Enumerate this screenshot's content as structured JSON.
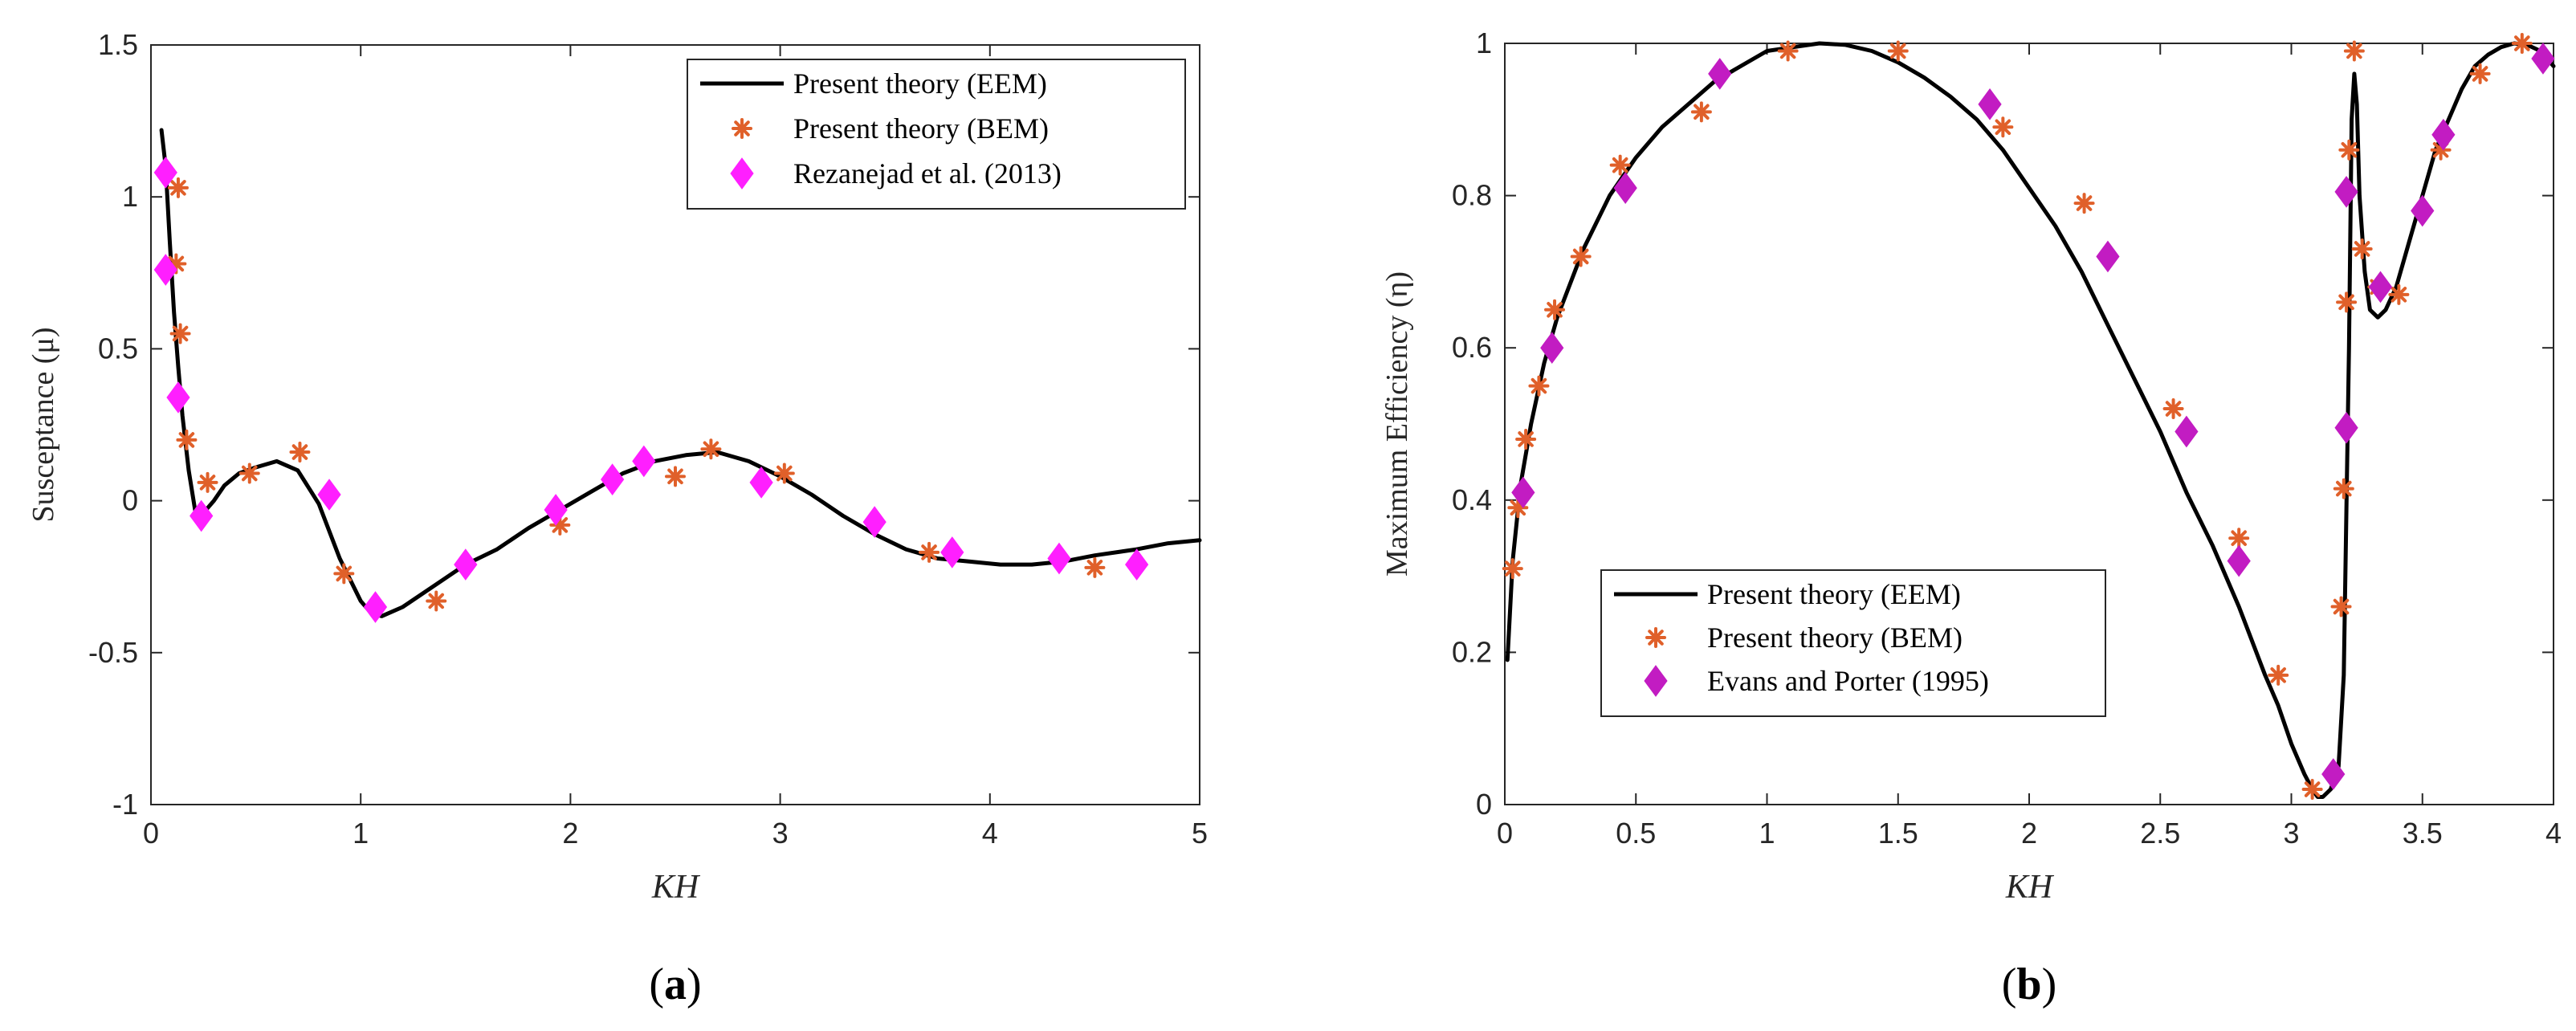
{
  "colors": {
    "line": "#000000",
    "bem_star": "#E0602A",
    "diamond_a": "#FF1FFF",
    "diamond_b": "#C21CC2",
    "axis": "#262626"
  },
  "chart_data": [
    {
      "type": "line",
      "panel": "a",
      "panel_label": "a",
      "xlabel": "KH",
      "ylabel": "Susceptance (μ)",
      "xlim": [
        0,
        5
      ],
      "ylim": [
        -1,
        1.5
      ],
      "xticks": [
        0,
        1,
        2,
        3,
        4,
        5
      ],
      "xtick_labels": [
        "0",
        "1",
        "2",
        "3",
        "4",
        "5"
      ],
      "yticks": [
        -1,
        -0.5,
        0,
        0.5,
        1,
        1.5
      ],
      "ytick_labels": [
        "-1",
        "-0.5",
        "0",
        "0.5",
        "1",
        "1.5"
      ],
      "legend": [
        "Present theory (EEM)",
        "Present theory (BEM)",
        "Rezanejad et al. (2013)"
      ],
      "legend_position": "top-right",
      "series": [
        {
          "name": "Present theory (EEM)",
          "style": "line",
          "x": [
            0.05,
            0.07,
            0.09,
            0.11,
            0.13,
            0.15,
            0.18,
            0.21,
            0.25,
            0.3,
            0.35,
            0.42,
            0.5,
            0.6,
            0.7,
            0.8,
            0.9,
            1.0,
            1.05,
            1.1,
            1.2,
            1.35,
            1.5,
            1.65,
            1.8,
            1.95,
            2.1,
            2.25,
            2.4,
            2.55,
            2.7,
            2.85,
            3.0,
            3.15,
            3.3,
            3.45,
            3.6,
            3.75,
            3.9,
            4.05,
            4.2,
            4.35,
            4.5,
            4.7,
            4.85,
            5.0
          ],
          "y": [
            1.22,
            1.1,
            0.85,
            0.62,
            0.44,
            0.28,
            0.1,
            -0.03,
            -0.04,
            0.0,
            0.05,
            0.09,
            0.11,
            0.13,
            0.1,
            -0.01,
            -0.19,
            -0.33,
            -0.37,
            -0.38,
            -0.35,
            -0.28,
            -0.21,
            -0.16,
            -0.09,
            -0.03,
            0.03,
            0.09,
            0.13,
            0.15,
            0.16,
            0.13,
            0.08,
            0.02,
            -0.05,
            -0.11,
            -0.16,
            -0.19,
            -0.2,
            -0.21,
            -0.21,
            -0.2,
            -0.18,
            -0.16,
            -0.14,
            -0.13
          ]
        },
        {
          "name": "Present theory (BEM)",
          "style": "star",
          "x": [
            0.13,
            0.12,
            0.14,
            0.17,
            0.27,
            0.47,
            0.71,
            0.92,
            1.36,
            1.95,
            2.5,
            2.67,
            3.02,
            3.71,
            4.5
          ],
          "y": [
            1.03,
            0.78,
            0.55,
            0.2,
            0.06,
            0.09,
            0.16,
            -0.24,
            -0.33,
            -0.08,
            0.08,
            0.17,
            0.09,
            -0.17,
            -0.22
          ]
        },
        {
          "name": "Rezanejad et al. (2013)",
          "style": "diamond",
          "x": [
            0.07,
            0.07,
            0.13,
            0.24,
            0.85,
            1.07,
            1.5,
            1.93,
            2.2,
            2.35,
            2.91,
            3.45,
            3.82,
            4.33,
            4.7
          ],
          "y": [
            1.08,
            0.76,
            0.34,
            -0.05,
            0.02,
            -0.35,
            -0.21,
            -0.03,
            0.07,
            0.13,
            0.06,
            -0.07,
            -0.17,
            -0.19,
            -0.21
          ]
        }
      ]
    },
    {
      "type": "line",
      "panel": "b",
      "panel_label": "b",
      "xlabel": "KH",
      "ylabel": "Maximum Efficiency (η)",
      "xlim": [
        0,
        4
      ],
      "ylim": [
        0,
        1
      ],
      "xticks": [
        0,
        0.5,
        1,
        1.5,
        2,
        2.5,
        3,
        3.5,
        4
      ],
      "xtick_labels": [
        "0",
        "0.5",
        "1",
        "1.5",
        "2",
        "2.5",
        "3",
        "3.5",
        "4"
      ],
      "yticks": [
        0,
        0.2,
        0.4,
        0.6,
        0.8,
        1
      ],
      "ytick_labels": [
        "0",
        "0.2",
        "0.4",
        "0.6",
        "0.8",
        "1"
      ],
      "legend": [
        "Present theory (EEM)",
        "Present theory (BEM)",
        "Evans and Porter (1995)"
      ],
      "legend_position": "center-left",
      "series": [
        {
          "name": "Present theory (EEM)",
          "style": "line",
          "x": [
            0.01,
            0.03,
            0.06,
            0.1,
            0.15,
            0.2,
            0.3,
            0.4,
            0.5,
            0.6,
            0.7,
            0.8,
            0.9,
            1.0,
            1.1,
            1.2,
            1.3,
            1.4,
            1.5,
            1.6,
            1.7,
            1.8,
            1.9,
            2.0,
            2.1,
            2.2,
            2.3,
            2.4,
            2.5,
            2.6,
            2.7,
            2.8,
            2.9,
            2.95,
            3.0,
            3.05,
            3.08,
            3.1,
            3.12,
            3.15,
            3.18,
            3.2,
            3.22,
            3.23,
            3.24,
            3.25,
            3.26,
            3.28,
            3.3,
            3.33,
            3.36,
            3.4,
            3.45,
            3.5,
            3.55,
            3.6,
            3.65,
            3.7,
            3.75,
            3.8,
            3.85,
            3.9,
            3.95,
            4.0
          ],
          "y": [
            0.19,
            0.32,
            0.42,
            0.5,
            0.58,
            0.64,
            0.73,
            0.8,
            0.85,
            0.89,
            0.92,
            0.95,
            0.97,
            0.99,
            0.995,
            1.0,
            0.998,
            0.99,
            0.975,
            0.955,
            0.93,
            0.9,
            0.86,
            0.81,
            0.76,
            0.7,
            0.63,
            0.56,
            0.49,
            0.41,
            0.34,
            0.26,
            0.17,
            0.13,
            0.08,
            0.04,
            0.02,
            0.01,
            0.01,
            0.02,
            0.05,
            0.17,
            0.6,
            0.9,
            0.96,
            0.92,
            0.8,
            0.7,
            0.65,
            0.64,
            0.65,
            0.68,
            0.74,
            0.8,
            0.86,
            0.9,
            0.94,
            0.97,
            0.985,
            0.995,
            1.0,
            0.998,
            0.99,
            0.97
          ]
        },
        {
          "name": "Present theory (BEM)",
          "style": "star",
          "x": [
            0.03,
            0.05,
            0.08,
            0.13,
            0.19,
            0.29,
            0.44,
            0.75,
            1.08,
            1.5,
            1.9,
            2.21,
            2.55,
            2.8,
            2.95,
            3.08,
            3.19,
            3.2,
            3.21,
            3.22,
            3.24,
            3.27,
            3.33,
            3.41,
            3.57,
            3.72,
            3.88
          ],
          "y": [
            0.31,
            0.39,
            0.48,
            0.55,
            0.65,
            0.72,
            0.84,
            0.91,
            0.99,
            0.99,
            0.89,
            0.79,
            0.52,
            0.35,
            0.17,
            0.02,
            0.26,
            0.415,
            0.66,
            0.86,
            0.99,
            0.73,
            0.68,
            0.67,
            0.86,
            0.96,
            1.0
          ]
        },
        {
          "name": "Evans and Porter (1995)",
          "style": "diamond",
          "x": [
            0.07,
            0.18,
            0.46,
            0.82,
            1.85,
            2.3,
            2.6,
            2.8,
            3.16,
            3.21,
            3.21,
            3.34,
            3.5,
            3.58,
            3.96
          ],
          "y": [
            0.41,
            0.6,
            0.81,
            0.96,
            0.92,
            0.72,
            0.49,
            0.32,
            0.04,
            0.495,
            0.805,
            0.68,
            0.78,
            0.88,
            0.98
          ]
        }
      ]
    }
  ]
}
